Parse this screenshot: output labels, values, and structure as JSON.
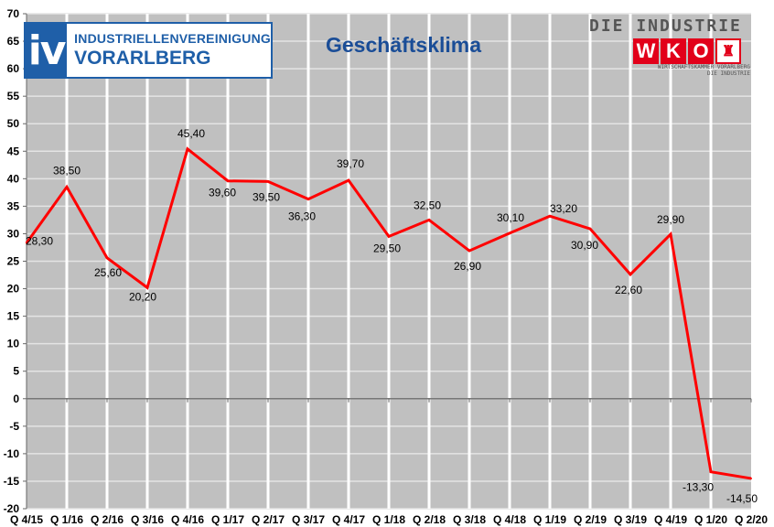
{
  "chart_data": {
    "type": "line",
    "title": "Geschäftsklima",
    "xlabel": "",
    "ylabel": "",
    "categories": [
      "Q 4/15",
      "Q 1/16",
      "Q 2/16",
      "Q 3/16",
      "Q 4/16",
      "Q 1/17",
      "Q 2/17",
      "Q 3/17",
      "Q 4/17",
      "Q 1/18",
      "Q 2/18",
      "Q 3/18",
      "Q 4/18",
      "Q 1/19",
      "Q 2/19",
      "Q 3/19",
      "Q 4/19",
      "Q 1/20",
      "Q 2/20"
    ],
    "series": [
      {
        "values": [
          28.3,
          38.5,
          25.6,
          20.2,
          45.4,
          39.6,
          39.5,
          36.3,
          39.7,
          29.5,
          32.5,
          26.9,
          30.1,
          33.2,
          30.9,
          22.6,
          29.9,
          -13.3,
          -14.5
        ],
        "labels": [
          "28,30",
          "38,50",
          "25,60",
          "20,20",
          "45,40",
          "39,60",
          "39,50",
          "36,30",
          "39,70",
          "29,50",
          "32,50",
          "26,90",
          "30,10",
          "33,20",
          "30,90",
          "22,60",
          "29,90",
          "-13,30",
          "-14,50"
        ],
        "color": "#ff0000"
      }
    ],
    "ylim": [
      -20,
      70
    ],
    "yticks": [
      "-20",
      "-15",
      "-10",
      "-5",
      "0",
      "5",
      "10",
      "15",
      "20",
      "25",
      "30",
      "35",
      "40",
      "45",
      "50",
      "55",
      "60",
      "65",
      "70"
    ],
    "grid": true,
    "plot_background": "#c0c0c0"
  },
  "logos": {
    "iv": {
      "mark": "iv",
      "line1": "INDUSTRIELLENVEREINIGUNG",
      "line2": "VORARLBERG",
      "color": "#1f5fa8"
    },
    "wko": {
      "top": "DIE INDUSTRIE",
      "letters": [
        "W",
        "K",
        "O"
      ],
      "sub1": "WIRTSCHAFTSKAMMER VORARLBERG",
      "sub2": "DIE INDUSTRIE",
      "color": "#e2001a"
    }
  }
}
